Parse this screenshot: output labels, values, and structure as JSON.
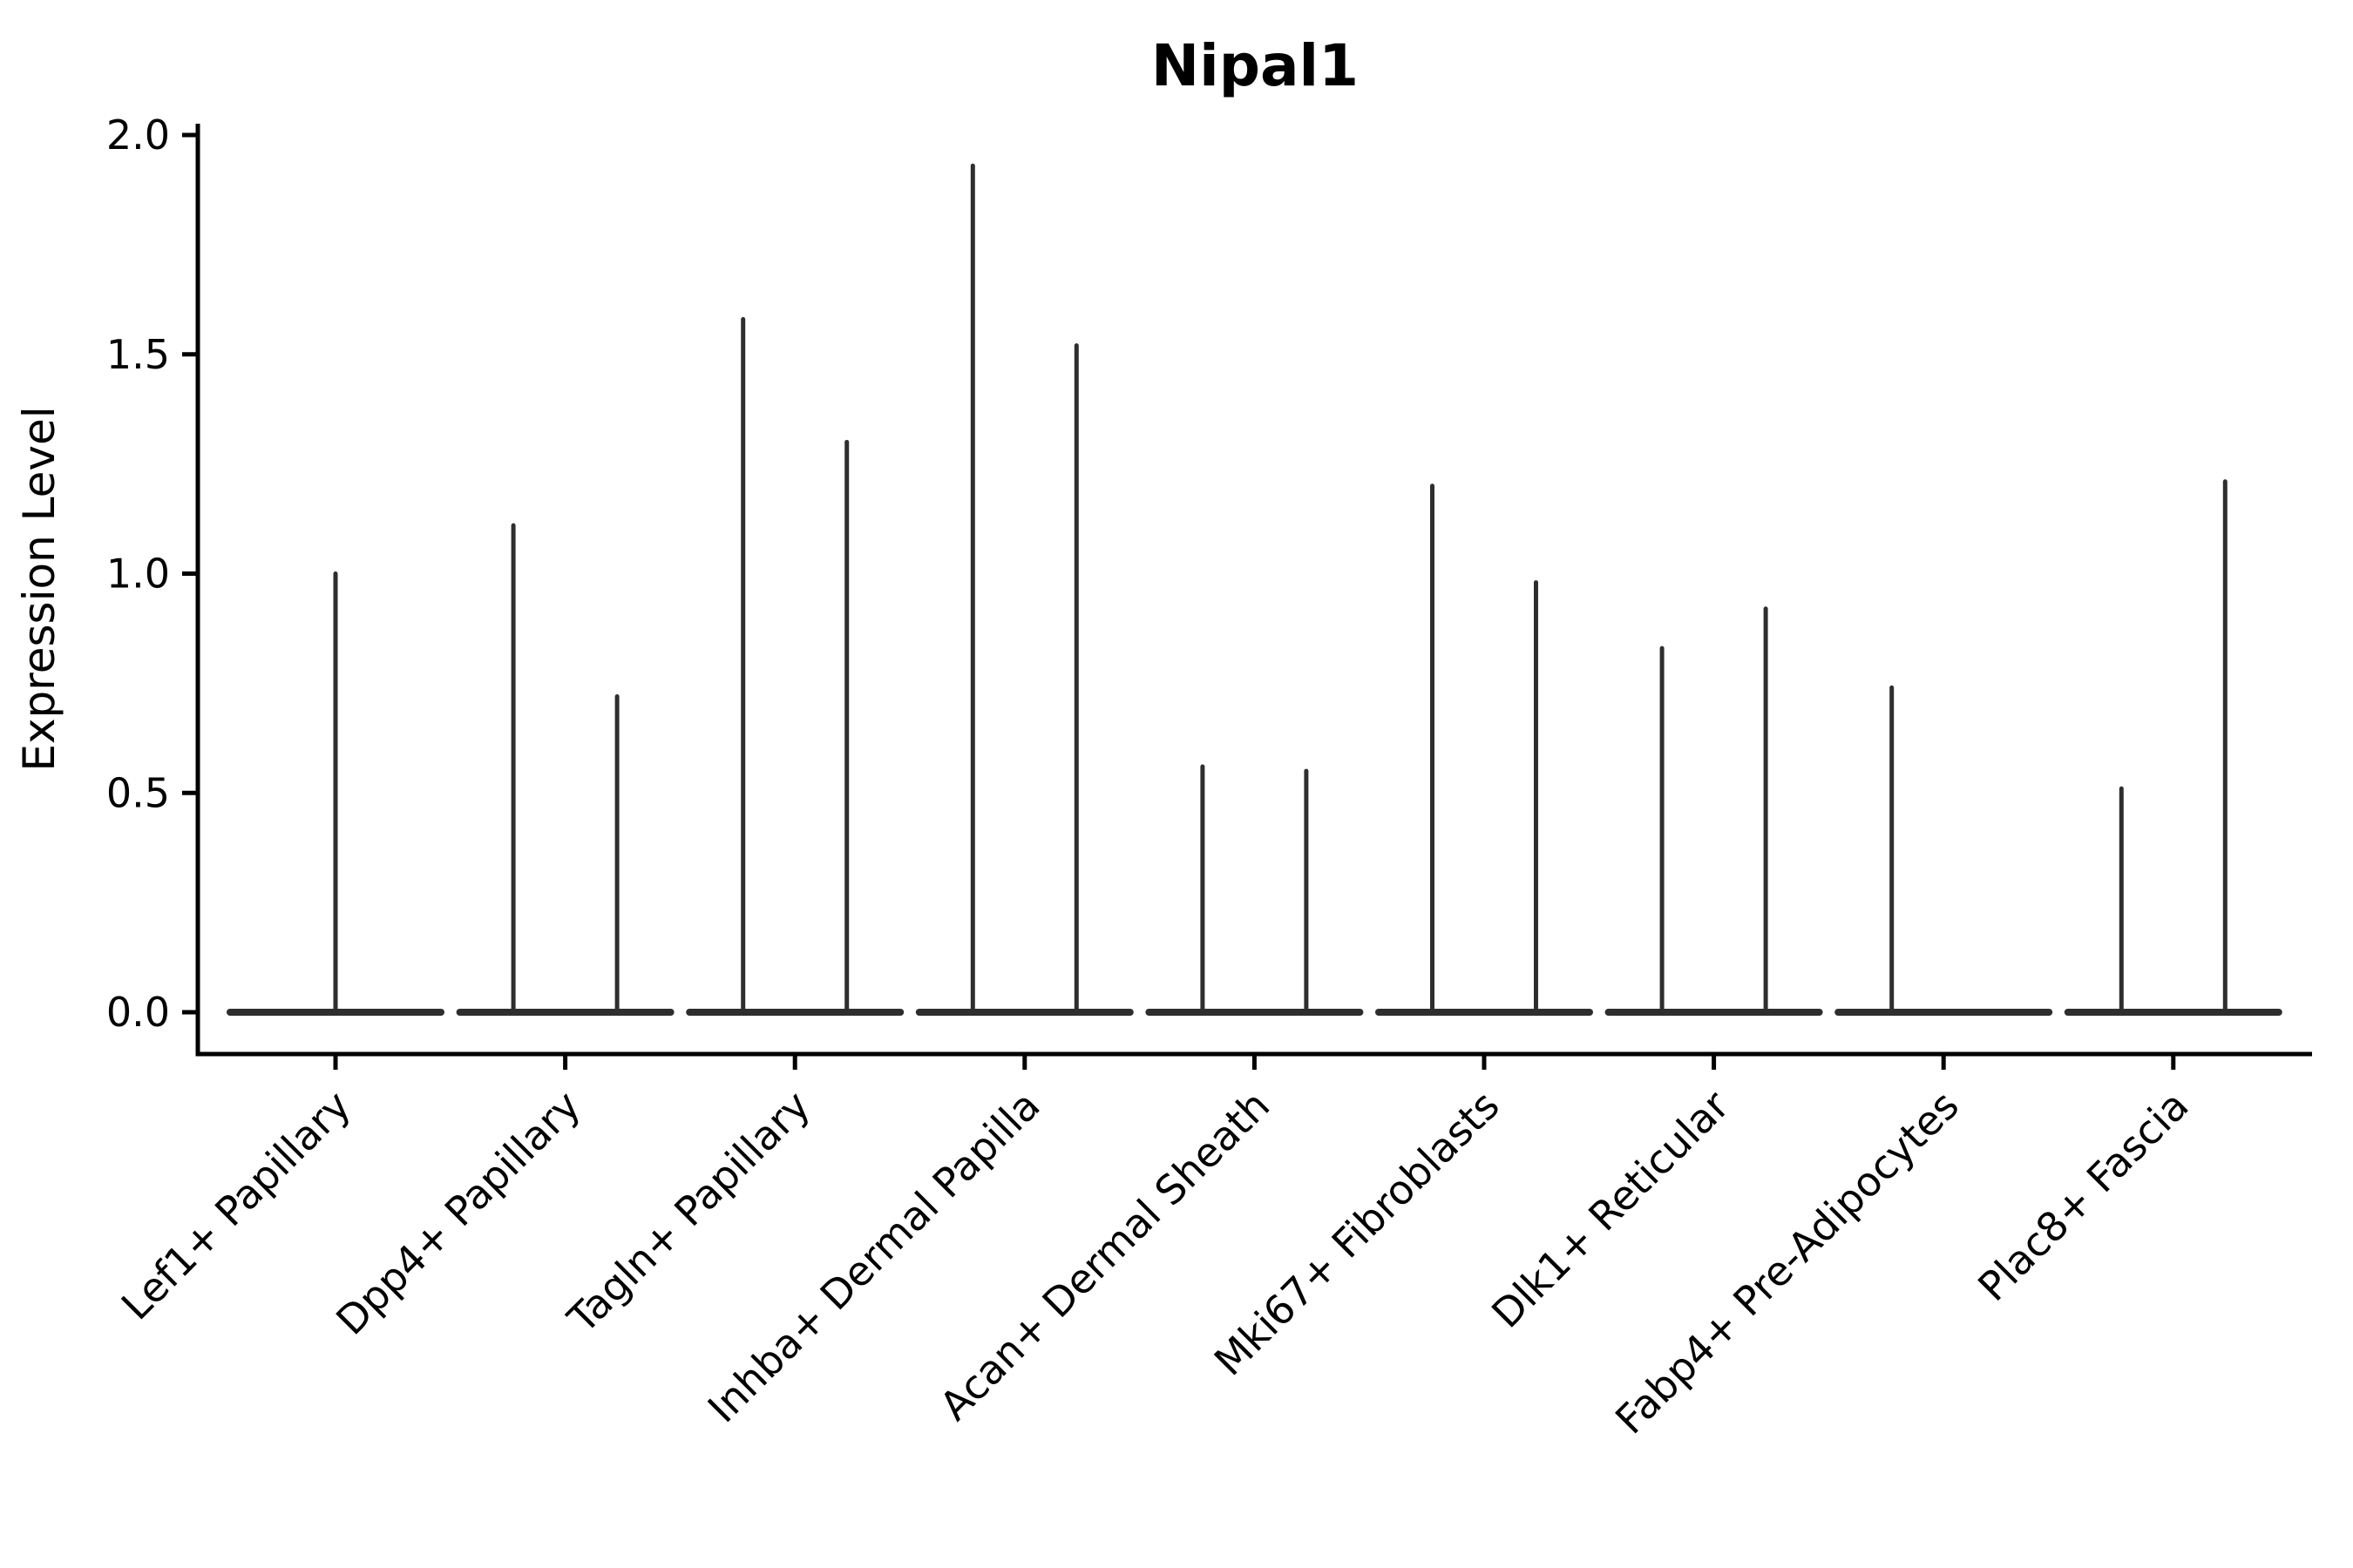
{
  "chart_data": {
    "type": "violin",
    "title": "Nipal1",
    "ylabel": "Expression Level",
    "xlabel": "",
    "ylim": [
      0,
      2.0
    ],
    "yticks": [
      0.0,
      0.5,
      1.0,
      1.5,
      2.0
    ],
    "grid": false,
    "legend": false,
    "line_color": "#2e2e2e",
    "axis_color": "#000000",
    "background": "#ffffff",
    "categories": [
      "Lef1+ Papillary",
      "Dpp4+ Papillary",
      "Tagln+ Papillary",
      "Inhba+ Dermal Papilla",
      "Acan+ Dermal Sheath",
      "Mki67+ Fibroblasts",
      "Dlk1+ Reticular",
      "Fabp4+ Pre-Adipocytes",
      "Plac8+ Fascia"
    ],
    "groups": [
      {
        "category": "Lef1+ Papillary",
        "violins": [
          {
            "position": "full",
            "max_expression": 1.0
          }
        ]
      },
      {
        "category": "Dpp4+ Papillary",
        "violins": [
          {
            "position": "left",
            "max_expression": 1.11
          },
          {
            "position": "right",
            "max_expression": 0.72
          }
        ]
      },
      {
        "category": "Tagln+ Papillary",
        "violins": [
          {
            "position": "left",
            "max_expression": 1.58
          },
          {
            "position": "right",
            "max_expression": 1.3
          }
        ]
      },
      {
        "category": "Inhba+ Dermal Papilla",
        "violins": [
          {
            "position": "left",
            "max_expression": 1.93
          },
          {
            "position": "right",
            "max_expression": 1.52
          }
        ]
      },
      {
        "category": "Acan+ Dermal Sheath",
        "violins": [
          {
            "position": "left",
            "max_expression": 0.56
          },
          {
            "position": "right",
            "max_expression": 0.55
          }
        ]
      },
      {
        "category": "Mki67+ Fibroblasts",
        "violins": [
          {
            "position": "left",
            "max_expression": 1.2
          },
          {
            "position": "right",
            "max_expression": 0.98
          }
        ]
      },
      {
        "category": "Dlk1+ Reticular",
        "violins": [
          {
            "position": "left",
            "max_expression": 0.83
          },
          {
            "position": "right",
            "max_expression": 0.92
          }
        ]
      },
      {
        "category": "Fabp4+ Pre-Adipocytes",
        "violins": [
          {
            "position": "left",
            "max_expression": 0.74
          },
          {
            "position": "right",
            "max_expression": 0.0
          }
        ]
      },
      {
        "category": "Plac8+ Fascia",
        "violins": [
          {
            "position": "left",
            "max_expression": 0.51
          },
          {
            "position": "right",
            "max_expression": 1.21
          }
        ]
      }
    ]
  }
}
